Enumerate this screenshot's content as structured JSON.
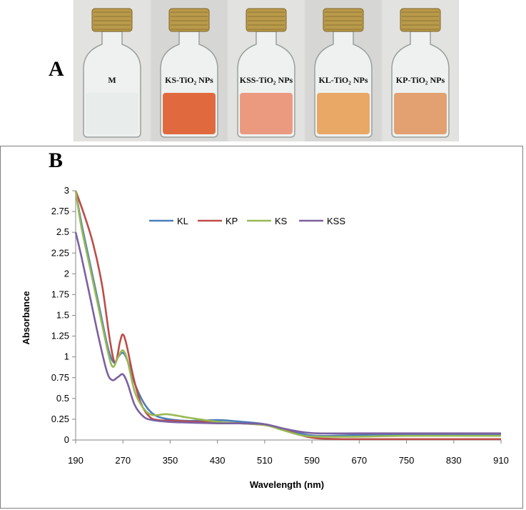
{
  "panel_a": {
    "letter": "A",
    "vials": [
      {
        "label": "M",
        "liquid_color": "#e8ecea"
      },
      {
        "label": "KS-TiO₂ NPs",
        "liquid_color": "#e06a3e"
      },
      {
        "label": "KSS-TiO₂ NPs",
        "liquid_color": "#eb9a80"
      },
      {
        "label": "KL-TiO₂ NPs",
        "liquid_color": "#e9a866"
      },
      {
        "label": "KP-TiO₂ NPs",
        "liquid_color": "#e3a070"
      }
    ]
  },
  "panel_b": {
    "letter": "B"
  },
  "chart_data": {
    "type": "line",
    "title": "",
    "xlabel": "Wavelength (nm)",
    "ylabel": "Absorbance",
    "xlim": [
      190,
      910
    ],
    "ylim": [
      0,
      3
    ],
    "x_ticks": [
      "190",
      "270",
      "350",
      "430",
      "510",
      "590",
      "670",
      "750",
      "830",
      "910"
    ],
    "y_ticks": [
      "0",
      "0.25",
      "0.5",
      "0.75",
      "1",
      "1.25",
      "1.5",
      "1.75",
      "2",
      "2.25",
      "2.5",
      "2.75",
      "3"
    ],
    "legend_position": "top",
    "series": [
      {
        "name": "KL",
        "color": "#4a7ebb",
        "points": [
          [
            190,
            3.0
          ],
          [
            200,
            2.6
          ],
          [
            215,
            2.1
          ],
          [
            230,
            1.6
          ],
          [
            245,
            1.1
          ],
          [
            255,
            0.93
          ],
          [
            262,
            1.0
          ],
          [
            270,
            1.05
          ],
          [
            278,
            0.95
          ],
          [
            290,
            0.68
          ],
          [
            305,
            0.45
          ],
          [
            320,
            0.32
          ],
          [
            340,
            0.26
          ],
          [
            380,
            0.23
          ],
          [
            430,
            0.24
          ],
          [
            470,
            0.22
          ],
          [
            510,
            0.19
          ],
          [
            540,
            0.14
          ],
          [
            570,
            0.08
          ],
          [
            600,
            0.05
          ],
          [
            670,
            0.06
          ],
          [
            750,
            0.07
          ],
          [
            910,
            0.07
          ]
        ]
      },
      {
        "name": "KP",
        "color": "#be4b48",
        "points": [
          [
            190,
            3.0
          ],
          [
            205,
            2.7
          ],
          [
            220,
            2.35
          ],
          [
            235,
            1.85
          ],
          [
            248,
            1.2
          ],
          [
            257,
            0.93
          ],
          [
            265,
            1.18
          ],
          [
            270,
            1.27
          ],
          [
            276,
            1.15
          ],
          [
            288,
            0.75
          ],
          [
            300,
            0.45
          ],
          [
            315,
            0.28
          ],
          [
            330,
            0.24
          ],
          [
            360,
            0.23
          ],
          [
            430,
            0.21
          ],
          [
            470,
            0.2
          ],
          [
            510,
            0.18
          ],
          [
            540,
            0.13
          ],
          [
            570,
            0.06
          ],
          [
            600,
            0.02
          ],
          [
            650,
            0.01
          ],
          [
            750,
            0.01
          ],
          [
            910,
            0.01
          ]
        ]
      },
      {
        "name": "KS",
        "color": "#98b954",
        "points": [
          [
            190,
            3.0
          ],
          [
            200,
            2.55
          ],
          [
            215,
            2.05
          ],
          [
            230,
            1.55
          ],
          [
            245,
            1.05
          ],
          [
            253,
            0.88
          ],
          [
            262,
            1.0
          ],
          [
            270,
            1.08
          ],
          [
            278,
            0.95
          ],
          [
            290,
            0.58
          ],
          [
            305,
            0.38
          ],
          [
            320,
            0.3
          ],
          [
            345,
            0.31
          ],
          [
            380,
            0.27
          ],
          [
            430,
            0.22
          ],
          [
            470,
            0.2
          ],
          [
            510,
            0.18
          ],
          [
            540,
            0.12
          ],
          [
            570,
            0.06
          ],
          [
            600,
            0.04
          ],
          [
            670,
            0.04
          ],
          [
            750,
            0.05
          ],
          [
            910,
            0.05
          ]
        ]
      },
      {
        "name": "KSS",
        "color": "#7d60a0",
        "points": [
          [
            190,
            2.5
          ],
          [
            200,
            2.2
          ],
          [
            215,
            1.7
          ],
          [
            230,
            1.2
          ],
          [
            243,
            0.82
          ],
          [
            252,
            0.72
          ],
          [
            262,
            0.76
          ],
          [
            270,
            0.79
          ],
          [
            278,
            0.68
          ],
          [
            290,
            0.42
          ],
          [
            305,
            0.28
          ],
          [
            320,
            0.24
          ],
          [
            345,
            0.22
          ],
          [
            380,
            0.21
          ],
          [
            430,
            0.2
          ],
          [
            470,
            0.2
          ],
          [
            510,
            0.19
          ],
          [
            540,
            0.14
          ],
          [
            570,
            0.1
          ],
          [
            600,
            0.08
          ],
          [
            670,
            0.08
          ],
          [
            750,
            0.08
          ],
          [
            910,
            0.08
          ]
        ]
      }
    ]
  }
}
